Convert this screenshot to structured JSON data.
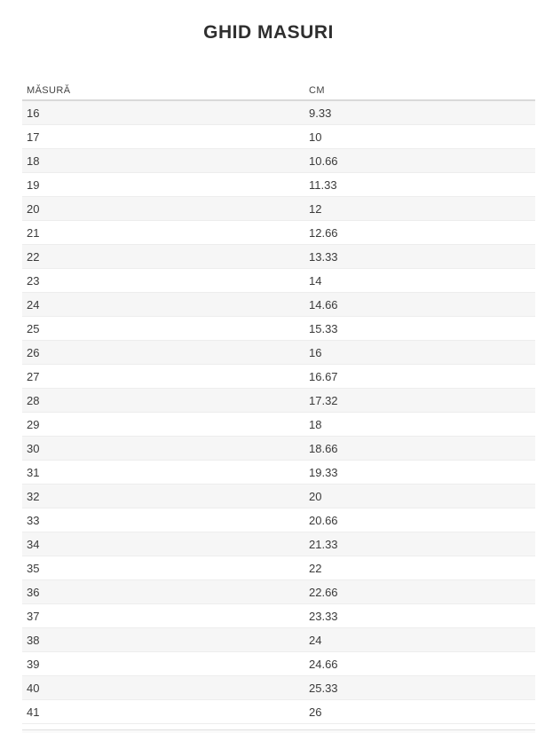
{
  "title": "GHID MASURI",
  "table": {
    "columns": [
      {
        "label": "MĂSURĂ"
      },
      {
        "label": "CM"
      }
    ],
    "rows": [
      {
        "size": "16",
        "cm": "9.33"
      },
      {
        "size": "17",
        "cm": "10"
      },
      {
        "size": "18",
        "cm": "10.66"
      },
      {
        "size": "19",
        "cm": "11.33"
      },
      {
        "size": "20",
        "cm": "12"
      },
      {
        "size": "21",
        "cm": "12.66"
      },
      {
        "size": "22",
        "cm": "13.33"
      },
      {
        "size": "23",
        "cm": "14"
      },
      {
        "size": "24",
        "cm": "14.66"
      },
      {
        "size": "25",
        "cm": "15.33"
      },
      {
        "size": "26",
        "cm": "16"
      },
      {
        "size": "27",
        "cm": "16.67"
      },
      {
        "size": "28",
        "cm": "17.32"
      },
      {
        "size": "29",
        "cm": "18"
      },
      {
        "size": "30",
        "cm": "18.66"
      },
      {
        "size": "31",
        "cm": "19.33"
      },
      {
        "size": "32",
        "cm": "20"
      },
      {
        "size": "33",
        "cm": "20.66"
      },
      {
        "size": "34",
        "cm": "21.33"
      },
      {
        "size": "35",
        "cm": "22"
      },
      {
        "size": "36",
        "cm": "22.66"
      },
      {
        "size": "37",
        "cm": "23.33"
      },
      {
        "size": "38",
        "cm": "24"
      },
      {
        "size": "39",
        "cm": "24.66"
      },
      {
        "size": "40",
        "cm": "25.33"
      },
      {
        "size": "41",
        "cm": "26"
      }
    ]
  },
  "colors": {
    "stripe": "#f6f6f6",
    "row_border": "#ededed",
    "header_border": "#d9d9d9",
    "title_text": "#2f2f2f",
    "body_text": "#3a3a3a"
  }
}
